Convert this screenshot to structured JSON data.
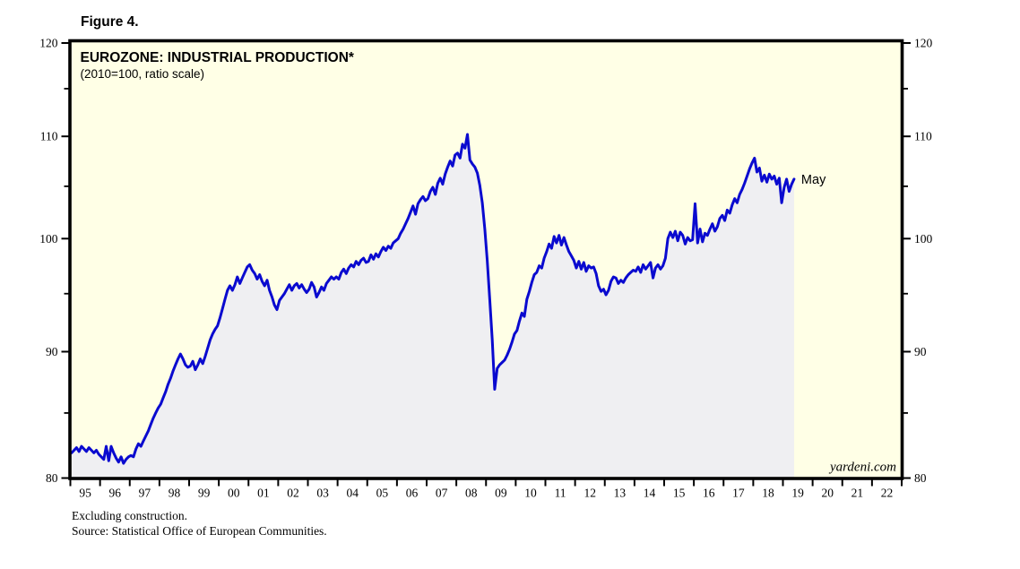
{
  "figure_label": "Figure 4.",
  "chart": {
    "title": "EUROZONE: INDUSTRIAL PRODUCTION*",
    "subtitle": "(2010=100, ratio scale)",
    "watermark": "yardeni.com"
  },
  "footnotes": [
    "Excluding construction.",
    "Source: Statistical Office of European Communities."
  ],
  "colors": {
    "line": "#0a0acf",
    "annotation": "#1414dd",
    "fill": "#efeff2",
    "plot_background": "#ffffe6",
    "axis": "#000000"
  },
  "chart_data": {
    "type": "line",
    "title": "EUROZONE: INDUSTRIAL PRODUCTION*",
    "subtitle": "(2010=100, ratio scale)",
    "y_scale": "log",
    "ylim": [
      80,
      120
    ],
    "y_major_ticks": [
      80,
      90,
      100,
      110,
      120
    ],
    "y_minor_ticks": [
      85,
      95,
      105,
      115
    ],
    "x_start_year": 1995,
    "x_end_year": 2023,
    "x_tick_labels": [
      "95",
      "96",
      "97",
      "98",
      "99",
      "00",
      "01",
      "02",
      "03",
      "04",
      "05",
      "06",
      "07",
      "08",
      "09",
      "10",
      "11",
      "12",
      "13",
      "14",
      "15",
      "16",
      "17",
      "18",
      "19",
      "20",
      "21",
      "22"
    ],
    "grid": false,
    "legend": "none",
    "last_point_label": "May",
    "series": [
      {
        "name": "Eurozone industrial production index",
        "frequency": "monthly",
        "first_period": "1995-01",
        "last_period": "2019-05",
        "values": [
          81.9,
          82.1,
          82.3,
          82.0,
          82.4,
          82.2,
          82.0,
          82.3,
          82.1,
          81.9,
          82.1,
          81.8,
          81.6,
          81.4,
          82.4,
          81.3,
          82.4,
          81.9,
          81.5,
          81.2,
          81.6,
          81.1,
          81.4,
          81.6,
          81.7,
          81.6,
          82.2,
          82.6,
          82.4,
          82.8,
          83.2,
          83.6,
          84.1,
          84.6,
          85.0,
          85.4,
          85.7,
          86.2,
          86.7,
          87.3,
          87.8,
          88.4,
          88.9,
          89.4,
          89.8,
          89.4,
          88.9,
          88.7,
          88.8,
          89.2,
          88.5,
          88.9,
          89.4,
          89.0,
          89.6,
          90.3,
          91.0,
          91.5,
          91.9,
          92.2,
          92.9,
          93.7,
          94.5,
          95.3,
          95.7,
          95.3,
          95.8,
          96.5,
          95.9,
          96.4,
          96.9,
          97.4,
          97.6,
          97.1,
          96.8,
          96.3,
          96.7,
          96.1,
          95.7,
          96.2,
          95.3,
          94.7,
          94.0,
          93.6,
          94.4,
          94.7,
          95.0,
          95.4,
          95.8,
          95.3,
          95.7,
          95.9,
          95.5,
          95.8,
          95.4,
          95.1,
          95.4,
          96.0,
          95.6,
          94.7,
          95.1,
          95.6,
          95.3,
          95.9,
          96.2,
          96.5,
          96.3,
          96.5,
          96.3,
          96.9,
          97.2,
          96.8,
          97.3,
          97.6,
          97.4,
          97.9,
          97.6,
          98.0,
          98.2,
          97.8,
          97.9,
          98.5,
          98.1,
          98.6,
          98.3,
          98.8,
          99.2,
          98.9,
          99.3,
          99.1,
          99.6,
          99.8,
          100.0,
          100.5,
          100.9,
          101.4,
          101.9,
          102.5,
          103.1,
          102.3,
          103.3,
          103.7,
          104.0,
          103.6,
          103.8,
          104.5,
          104.9,
          104.2,
          105.3,
          105.8,
          105.2,
          106.2,
          106.9,
          107.5,
          107.0,
          108.1,
          108.3,
          107.8,
          109.2,
          108.8,
          110.2,
          107.6,
          107.2,
          106.9,
          106.3,
          105.1,
          103.4,
          100.9,
          98.0,
          94.5,
          91.0,
          86.9,
          88.6,
          88.9,
          89.1,
          89.3,
          89.7,
          90.2,
          90.8,
          91.5,
          91.8,
          92.6,
          93.3,
          93.0,
          94.5,
          95.2,
          96.0,
          96.7,
          96.9,
          97.5,
          97.3,
          98.2,
          98.8,
          99.5,
          99.1,
          100.2,
          99.6,
          100.3,
          99.4,
          100.1,
          99.4,
          98.8,
          98.4,
          98.0,
          97.3,
          97.9,
          97.2,
          97.8,
          97.0,
          97.5,
          97.3,
          97.4,
          96.8,
          95.7,
          95.2,
          95.4,
          94.9,
          95.3,
          96.1,
          96.5,
          96.4,
          95.9,
          96.2,
          96.0,
          96.4,
          96.7,
          96.9,
          97.1,
          97.0,
          97.4,
          96.9,
          97.6,
          97.2,
          97.5,
          97.8,
          96.4,
          97.3,
          97.6,
          97.2,
          97.5,
          98.2,
          100.0,
          100.6,
          100.1,
          100.7,
          99.8,
          100.6,
          100.3,
          99.5,
          100.1,
          99.8,
          99.9,
          103.3,
          99.6,
          100.9,
          99.7,
          100.5,
          100.3,
          100.9,
          101.4,
          100.7,
          101.1,
          101.9,
          102.2,
          101.7,
          102.7,
          102.4,
          103.2,
          103.8,
          103.4,
          104.2,
          104.7,
          105.3,
          106.0,
          106.7,
          107.3,
          107.8,
          106.4,
          106.8,
          105.5,
          106.1,
          105.4,
          106.2,
          105.7,
          106.0,
          105.2,
          105.8,
          103.4,
          104.9,
          105.7,
          104.5,
          105.2,
          105.7
        ]
      }
    ]
  }
}
